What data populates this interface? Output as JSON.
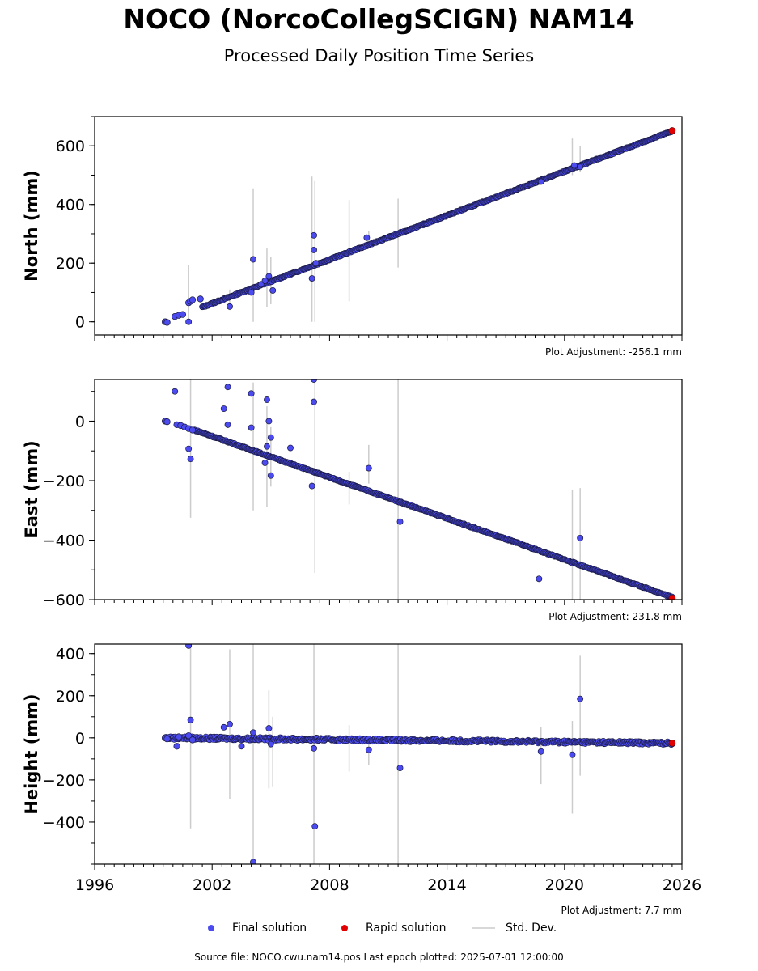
{
  "title": "NOCO (NorcoCollegSCIGN) NAM14",
  "subtitle": "Processed Daily Position Time Series",
  "legend": {
    "final": "Final solution",
    "rapid": "Rapid solution",
    "std": "Std. Dev."
  },
  "footer": "Source file: NOCO.cwu.nam14.pos  Last epoch plotted: 2025-07-01 12:00:00",
  "colors": {
    "final_fill": "#4b4bef",
    "final_edge": "#1a1a40",
    "rapid_fill": "#e00000",
    "std_line": "#cccccc"
  },
  "chart_data": [
    {
      "type": "scatter",
      "ylabel": "North (mm)",
      "adjustment": "Plot Adjustment: -256.1 mm",
      "xlim": [
        1996,
        2026
      ],
      "ylim": [
        -45,
        700
      ],
      "yticks": [
        0,
        200,
        400,
        600
      ],
      "ytick_labels": [
        "0",
        "200",
        "400",
        "600"
      ],
      "trend": [
        [
          2001.5,
          50
        ],
        [
          2025.5,
          650
        ]
      ],
      "start_cluster": [
        [
          1999.6,
          0
        ],
        [
          1999.7,
          -2
        ],
        [
          2000.1,
          18
        ],
        [
          2000.3,
          22
        ],
        [
          2000.5,
          25
        ],
        [
          2000.8,
          65
        ],
        [
          2000.9,
          70
        ],
        [
          2001.0,
          75
        ],
        [
          2001.4,
          78
        ]
      ],
      "rapid": [
        [
          2025.5,
          652
        ]
      ],
      "outliers": [
        [
          2000.8,
          0
        ],
        [
          2002.9,
          52
        ],
        [
          2004.1,
          213
        ],
        [
          2004.0,
          100
        ],
        [
          2004.5,
          128
        ],
        [
          2004.7,
          140
        ],
        [
          2004.9,
          155
        ],
        [
          2005.1,
          107
        ],
        [
          2007.1,
          148
        ],
        [
          2007.2,
          245
        ],
        [
          2007.2,
          295
        ],
        [
          2007.3,
          200
        ],
        [
          2009.9,
          287
        ],
        [
          2018.8,
          478
        ],
        [
          2020.5,
          533
        ],
        [
          2020.8,
          528
        ]
      ],
      "std_dev": [
        [
          2000.8,
          0,
          195
        ],
        [
          2002.9,
          40,
          110
        ],
        [
          2004.1,
          0,
          455
        ],
        [
          2004.8,
          50,
          250
        ],
        [
          2005.0,
          60,
          220
        ],
        [
          2007.1,
          0,
          495
        ],
        [
          2007.25,
          0,
          480
        ],
        [
          2009.0,
          70,
          415
        ],
        [
          2010.0,
          270,
          310
        ],
        [
          2011.5,
          185,
          420
        ],
        [
          2020.4,
          500,
          625
        ],
        [
          2020.8,
          510,
          600
        ]
      ]
    },
    {
      "type": "scatter",
      "ylabel": "East (mm)",
      "adjustment": "Plot Adjustment: 231.8 mm",
      "xlim": [
        1996,
        2026
      ],
      "ylim": [
        -600,
        140
      ],
      "yticks": [
        0,
        -200,
        -400,
        -600
      ],
      "ytick_labels": [
        "0",
        "−200",
        "−400",
        "−600"
      ],
      "trend": [
        [
          2001.1,
          -30
        ],
        [
          2025.5,
          -592
        ]
      ],
      "start_cluster": [
        [
          1999.6,
          0
        ],
        [
          1999.7,
          -2
        ],
        [
          2000.2,
          -12
        ],
        [
          2000.4,
          -15
        ],
        [
          2000.6,
          -20
        ],
        [
          2000.8,
          -25
        ],
        [
          2001.0,
          -30
        ]
      ],
      "rapid": [
        [
          2025.5,
          -595
        ]
      ],
      "outliers": [
        [
          2000.1,
          100
        ],
        [
          2000.8,
          -93
        ],
        [
          2000.9,
          -127
        ],
        [
          2002.6,
          42
        ],
        [
          2002.8,
          115
        ],
        [
          2002.8,
          -12
        ],
        [
          2004.0,
          93
        ],
        [
          2004.0,
          -22
        ],
        [
          2004.8,
          72
        ],
        [
          2004.9,
          0
        ],
        [
          2005.0,
          -55
        ],
        [
          2004.8,
          -85
        ],
        [
          2004.7,
          -140
        ],
        [
          2005.0,
          -183
        ],
        [
          2006.0,
          -90
        ],
        [
          2007.2,
          140
        ],
        [
          2007.2,
          65
        ],
        [
          2007.1,
          -218
        ],
        [
          2010.0,
          -158
        ],
        [
          2011.6,
          -338
        ],
        [
          2018.7,
          -530
        ],
        [
          2020.8,
          -393
        ]
      ],
      "std_dev": [
        [
          2000.9,
          -325,
          140
        ],
        [
          2004.1,
          -300,
          130
        ],
        [
          2004.8,
          -290,
          50
        ],
        [
          2005.0,
          -220,
          -20
        ],
        [
          2007.25,
          -510,
          140
        ],
        [
          2009.0,
          -280,
          -170
        ],
        [
          2010.0,
          -210,
          -80
        ],
        [
          2011.5,
          -600,
          140
        ],
        [
          2020.4,
          -600,
          -230
        ],
        [
          2020.8,
          -600,
          -225
        ]
      ]
    },
    {
      "type": "scatter",
      "ylabel": "Height (mm)",
      "adjustment": "Plot Adjustment: 7.7 mm",
      "xlim": [
        1996,
        2026
      ],
      "ylim": [
        -600,
        445
      ],
      "yticks": [
        400,
        200,
        0,
        -200,
        -400
      ],
      "ytick_labels": [
        "400",
        "200",
        "0",
        "−200",
        "−400"
      ],
      "trend": [
        [
          1999.6,
          0
        ],
        [
          2025.5,
          -25
        ]
      ],
      "start_cluster": [
        [
          1999.6,
          0
        ],
        [
          1999.7,
          -5
        ],
        [
          2000.2,
          -40
        ],
        [
          2000.3,
          5
        ],
        [
          2000.8,
          10
        ],
        [
          2001.0,
          -10
        ]
      ],
      "rapid": [
        [
          2025.5,
          -25
        ]
      ],
      "outliers": [
        [
          2000.8,
          438
        ],
        [
          2000.9,
          85
        ],
        [
          2002.6,
          50
        ],
        [
          2002.9,
          65
        ],
        [
          2003.5,
          -40
        ],
        [
          2004.1,
          25
        ],
        [
          2004.1,
          -590
        ],
        [
          2004.9,
          45
        ],
        [
          2005.0,
          -30
        ],
        [
          2007.2,
          -50
        ],
        [
          2007.25,
          -420
        ],
        [
          2010.0,
          -57
        ],
        [
          2011.6,
          -143
        ],
        [
          2018.8,
          -65
        ],
        [
          2020.4,
          -80
        ],
        [
          2020.8,
          185
        ]
      ],
      "std_dev": [
        [
          2000.9,
          -430,
          440
        ],
        [
          2002.9,
          -290,
          420
        ],
        [
          2004.1,
          -600,
          445
        ],
        [
          2004.9,
          -240,
          225
        ],
        [
          2005.1,
          -230,
          100
        ],
        [
          2007.2,
          -600,
          445
        ],
        [
          2009.0,
          -160,
          60
        ],
        [
          2010.0,
          -130,
          0
        ],
        [
          2011.5,
          -600,
          445
        ],
        [
          2018.8,
          -220,
          50
        ],
        [
          2020.4,
          -360,
          80
        ],
        [
          2020.8,
          -180,
          390
        ]
      ]
    }
  ],
  "xticks": [
    1996,
    2002,
    2008,
    2014,
    2020,
    2026
  ],
  "xtick_labels": [
    "1996",
    "2002",
    "2008",
    "2014",
    "2020",
    "2026"
  ]
}
